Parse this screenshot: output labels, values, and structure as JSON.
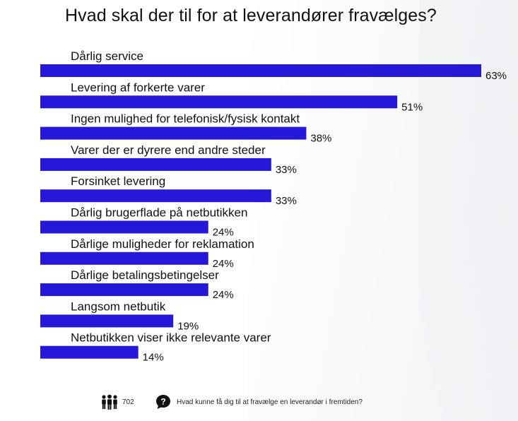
{
  "title": "Hvad skal der til for at leverandører fravælges?",
  "colors": {
    "bar": "#2518d8",
    "text": "#111111"
  },
  "chart_data": {
    "type": "bar",
    "orientation": "horizontal",
    "title": "Hvad skal der til for at leverandører fravælges?",
    "categories": [
      "Dårlig service",
      "Levering af forkerte varer",
      "Ingen mulighed for telefonisk/fysisk kontakt",
      "Varer der er dyrere end andre steder",
      "Forsinket levering",
      "Dårlig brugerflade på netbutikken",
      "Dårlige muligheder for reklamation",
      "Dårlige betalingsbetingelser",
      "Langsom netbutik",
      "Netbutikken viser ikke relevante varer"
    ],
    "values": [
      63,
      51,
      38,
      33,
      33,
      24,
      24,
      24,
      19,
      14
    ],
    "value_labels": [
      "63%",
      "51%",
      "38%",
      "33%",
      "33%",
      "24%",
      "24%",
      "24%",
      "19%",
      "14%"
    ],
    "unit": "%",
    "xlabel": "",
    "ylabel": "",
    "xlim": [
      0,
      63
    ]
  },
  "footer": {
    "respondents_icon": "people-icon",
    "respondents": "702",
    "question_icon": "question-bubble-icon",
    "question": "Hvad kunne få dig til at fravælge  en leverandør  i fremtiden?"
  }
}
